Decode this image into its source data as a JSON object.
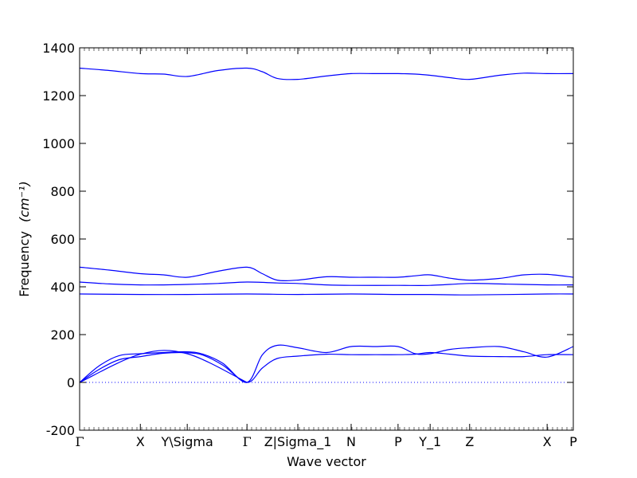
{
  "chart_data": {
    "type": "line",
    "xlabel": "Wave vector",
    "ylabel": "Frequency",
    "ylabel_unit": "(cm⁻¹)",
    "xlim": [
      0,
      1
    ],
    "ylim": [
      -200,
      1400
    ],
    "yticks": [
      -200,
      0,
      200,
      400,
      600,
      800,
      1000,
      1200,
      1400
    ],
    "xticks": [
      {
        "label": "Γ",
        "x": 0.0
      },
      {
        "label": "X",
        "x": 0.123
      },
      {
        "label": "Y\\Sigma",
        "x": 0.218
      },
      {
        "label": "Γ",
        "x": 0.339
      },
      {
        "label": "Z|Sigma_1",
        "x": 0.442
      },
      {
        "label": "N",
        "x": 0.55
      },
      {
        "label": "P",
        "x": 0.645
      },
      {
        "label": "Y_1",
        "x": 0.71
      },
      {
        "label": "Z",
        "x": 0.79
      },
      {
        "label": "X",
        "x": 0.947
      },
      {
        "label": "P",
        "x": 1.0
      }
    ],
    "zero_line": {
      "y": 0,
      "style": "dotted"
    },
    "series": [
      {
        "x": [
          0,
          0.06,
          0.123,
          0.17,
          0.218,
          0.28,
          0.339,
          0.37,
          0.4,
          0.442,
          0.5,
          0.55,
          0.6,
          0.645,
          0.68,
          0.71,
          0.75,
          0.79,
          0.85,
          0.9,
          0.947,
          1.0
        ],
        "y": [
          1315,
          1305,
          1292,
          1290,
          1280,
          1305,
          1315,
          1300,
          1272,
          1268,
          1282,
          1292,
          1292,
          1292,
          1290,
          1285,
          1275,
          1268,
          1285,
          1294,
          1292,
          1292
        ]
      },
      {
        "x": [
          0,
          0.06,
          0.123,
          0.17,
          0.218,
          0.28,
          0.339,
          0.37,
          0.4,
          0.442,
          0.5,
          0.55,
          0.6,
          0.645,
          0.68,
          0.71,
          0.75,
          0.79,
          0.85,
          0.9,
          0.947,
          1.0
        ],
        "y": [
          482,
          470,
          455,
          450,
          440,
          465,
          482,
          455,
          428,
          428,
          442,
          440,
          440,
          440,
          446,
          450,
          436,
          428,
          435,
          450,
          452,
          440
        ]
      },
      {
        "x": [
          0,
          0.06,
          0.123,
          0.17,
          0.218,
          0.28,
          0.339,
          0.4,
          0.442,
          0.5,
          0.55,
          0.645,
          0.71,
          0.79,
          0.85,
          0.947,
          1.0
        ],
        "y": [
          420,
          412,
          408,
          408,
          410,
          414,
          420,
          416,
          414,
          408,
          406,
          406,
          406,
          414,
          412,
          408,
          408
        ]
      },
      {
        "x": [
          0,
          0.123,
          0.218,
          0.339,
          0.442,
          0.55,
          0.645,
          0.71,
          0.79,
          0.947,
          1.0
        ],
        "y": [
          370,
          368,
          368,
          370,
          368,
          370,
          368,
          368,
          366,
          370,
          370
        ]
      },
      {
        "x": [
          0,
          0.04,
          0.08,
          0.123,
          0.17,
          0.218,
          0.25,
          0.29,
          0.339,
          0.37,
          0.4,
          0.442,
          0.5,
          0.55,
          0.6,
          0.645,
          0.68,
          0.71,
          0.75,
          0.79,
          0.85,
          0.9,
          0.947,
          1.0
        ],
        "y": [
          0,
          70,
          112,
          120,
          125,
          128,
          118,
          80,
          0,
          115,
          155,
          145,
          125,
          150,
          150,
          150,
          120,
          120,
          138,
          145,
          150,
          128,
          106,
          150
        ]
      },
      {
        "x": [
          0,
          0.04,
          0.08,
          0.123,
          0.17,
          0.218,
          0.25,
          0.29,
          0.339,
          0.37,
          0.4,
          0.442,
          0.5,
          0.55,
          0.6,
          0.645,
          0.68,
          0.71,
          0.75,
          0.79,
          0.85,
          0.9,
          0.947,
          1.0
        ],
        "y": [
          0,
          55,
          95,
          108,
          122,
          124,
          114,
          72,
          0,
          60,
          100,
          110,
          118,
          116,
          116,
          116,
          118,
          125,
          118,
          110,
          108,
          108,
          116,
          116
        ]
      },
      {
        "x": [
          0,
          0.123,
          0.218,
          0.339
        ],
        "y": [
          0,
          118,
          120,
          0
        ]
      }
    ]
  }
}
